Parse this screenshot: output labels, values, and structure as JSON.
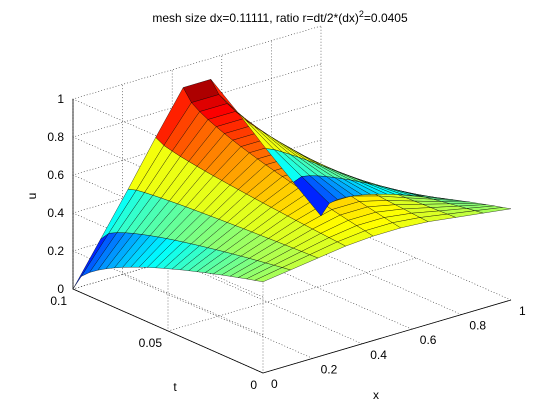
{
  "chart_data": {
    "type": "surface",
    "title": "mesh size dx=0.11111, ratio r=dt/2*(dx)",
    "title_sup": "2",
    "title_tail": "=0.0405",
    "xlabel": "x",
    "ylabel": "t",
    "zlabel": "u",
    "xlim": [
      0,
      1
    ],
    "ylim": [
      0,
      0.1
    ],
    "zlim": [
      0,
      1
    ],
    "xticks": [
      "0",
      "0.2",
      "0.4",
      "0.6",
      "0.8",
      "1"
    ],
    "yticks": [
      "0",
      "0.05",
      "0.1"
    ],
    "zticks": [
      "0",
      "0.2",
      "0.4",
      "0.6",
      "0.8",
      "1"
    ],
    "grid": true,
    "colormap": "jet",
    "x": [
      0,
      0.11111,
      0.22222,
      0.33333,
      0.44444,
      0.55556,
      0.66667,
      0.77778,
      0.88889,
      1
    ],
    "t_end": [
      0.48,
      0.5,
      0.52,
      0.54,
      0.55,
      0.55,
      0.54,
      0.52,
      0.5,
      0.48
    ],
    "t_start": [
      0.0,
      0.22,
      0.44,
      0.67,
      0.89,
      0.89,
      0.67,
      0.44,
      0.22,
      0.0
    ]
  }
}
